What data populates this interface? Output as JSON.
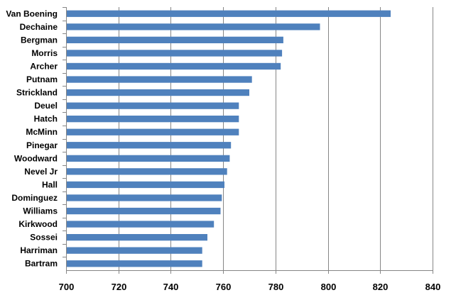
{
  "chart_data": {
    "type": "bar",
    "orientation": "horizontal",
    "categories": [
      "Van Boening",
      "Dechaine",
      "Bergman",
      "Morris",
      "Archer",
      "Putnam",
      "Strickland",
      "Deuel",
      "Hatch",
      "McMinn",
      "Pinegar",
      "Woodward",
      "Nevel Jr",
      "Hall",
      "Dominguez",
      "Williams",
      "Kirkwood",
      "Sossei",
      "Harriman",
      "Bartram"
    ],
    "values": [
      824,
      797,
      783,
      782.5,
      782,
      771,
      770,
      766,
      766,
      766,
      763,
      762.5,
      761.5,
      760.5,
      759.5,
      759,
      756.5,
      754,
      752,
      752
    ],
    "xlim": [
      700,
      840
    ],
    "xticks": [
      "700",
      "720",
      "740",
      "760",
      "780",
      "800",
      "820",
      "840"
    ],
    "grid": "vertical",
    "bar_color": "#4F81BD",
    "grid_color": "#868686",
    "title": "",
    "xlabel": "",
    "ylabel": ""
  }
}
